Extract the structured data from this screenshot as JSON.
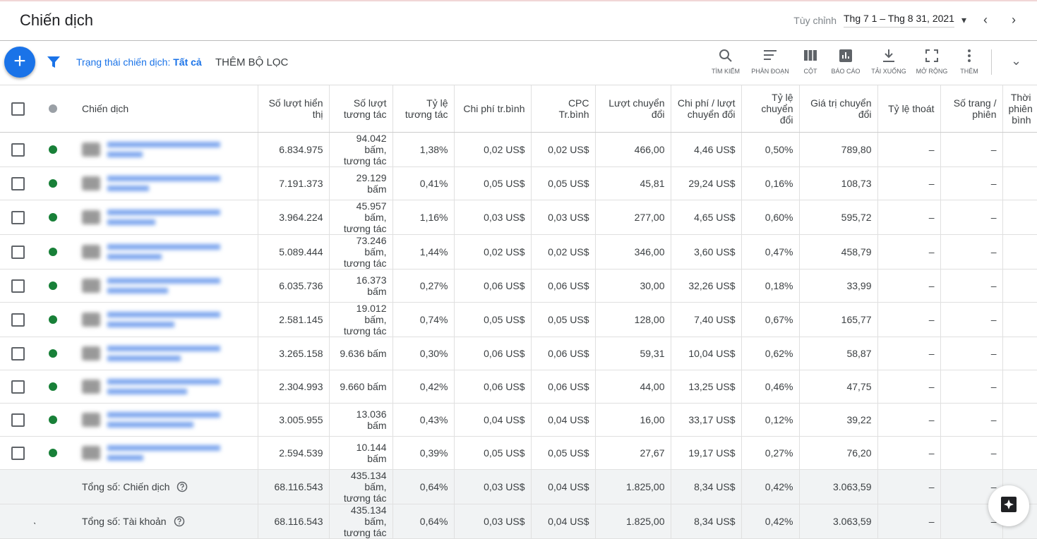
{
  "header": {
    "title": "Chiến dịch",
    "date_label": "Tùy chỉnh",
    "date_range": "Thg 7 1 – Thg 8 31, 2021"
  },
  "toolbar": {
    "filter_label": "Trạng thái chiến dịch:",
    "filter_value": "Tất cả",
    "add_filter": "THÊM BỘ LỌC",
    "tools": [
      "TÌM KIẾM",
      "PHÂN ĐOẠN",
      "CỘT",
      "BÁO CÁO",
      "TẢI XUỐNG",
      "MỞ RỘNG",
      "THÊM"
    ]
  },
  "table": {
    "columns": [
      "Chiến dịch",
      "Số lượt hiển thị",
      "Số lượt tương tác",
      "Tỷ lệ tương tác",
      "Chi phí tr.bình",
      "CPC Tr.bình",
      "Lượt chuyển đổi",
      "Chi phí / lượt chuyển đổi",
      "Tỷ lệ chuyển đổi",
      "Giá trị chuyển đổi",
      "Tỷ lệ thoát",
      "Số trang / phiên",
      "Thời phiên bình"
    ],
    "rows": [
      [
        "6.834.975",
        "94.042 bấm, tương tác",
        "1,38%",
        "0,02 US$",
        "0,02 US$",
        "466,00",
        "4,46 US$",
        "0,50%",
        "789,80",
        "–",
        "–"
      ],
      [
        "7.191.373",
        "29.129 bấm",
        "0,41%",
        "0,05 US$",
        "0,05 US$",
        "45,81",
        "29,24 US$",
        "0,16%",
        "108,73",
        "–",
        "–"
      ],
      [
        "3.964.224",
        "45.957 bấm, tương tác",
        "1,16%",
        "0,03 US$",
        "0,03 US$",
        "277,00",
        "4,65 US$",
        "0,60%",
        "595,72",
        "–",
        "–"
      ],
      [
        "5.089.444",
        "73.246 bấm, tương tác",
        "1,44%",
        "0,02 US$",
        "0,02 US$",
        "346,00",
        "3,60 US$",
        "0,47%",
        "458,79",
        "–",
        "–"
      ],
      [
        "6.035.736",
        "16.373 bấm",
        "0,27%",
        "0,06 US$",
        "0,06 US$",
        "30,00",
        "32,26 US$",
        "0,18%",
        "33,99",
        "–",
        "–"
      ],
      [
        "2.581.145",
        "19.012 bấm, tương tác",
        "0,74%",
        "0,05 US$",
        "0,05 US$",
        "128,00",
        "7,40 US$",
        "0,67%",
        "165,77",
        "–",
        "–"
      ],
      [
        "3.265.158",
        "9.636 bấm",
        "0,30%",
        "0,06 US$",
        "0,06 US$",
        "59,31",
        "10,04 US$",
        "0,62%",
        "58,87",
        "–",
        "–"
      ],
      [
        "2.304.993",
        "9.660 bấm",
        "0,42%",
        "0,06 US$",
        "0,06 US$",
        "44,00",
        "13,25 US$",
        "0,46%",
        "47,75",
        "–",
        "–"
      ],
      [
        "3.005.955",
        "13.036 bấm",
        "0,43%",
        "0,04 US$",
        "0,04 US$",
        "16,00",
        "33,17 US$",
        "0,12%",
        "39,22",
        "–",
        "–"
      ],
      [
        "2.594.539",
        "10.144 bấm",
        "0,39%",
        "0,05 US$",
        "0,05 US$",
        "27,67",
        "19,17 US$",
        "0,27%",
        "76,20",
        "–",
        "–"
      ]
    ],
    "totals": [
      {
        "label": "Tổng số: Chiến dịch",
        "cells": [
          "68.116.543",
          "435.134 bấm, tương tác",
          "0,64%",
          "0,03 US$",
          "0,04 US$",
          "1.825,00",
          "8,34 US$",
          "0,42%",
          "3.063,59",
          "–",
          "–"
        ]
      },
      {
        "label": "Tổng số: Tài khoản",
        "cells": [
          "68.116.543",
          "435.134 bấm, tương tác",
          "0,64%",
          "0,03 US$",
          "0,04 US$",
          "1.825,00",
          "8,34 US$",
          "0,42%",
          "3.063,59",
          "–",
          "–"
        ]
      }
    ]
  }
}
